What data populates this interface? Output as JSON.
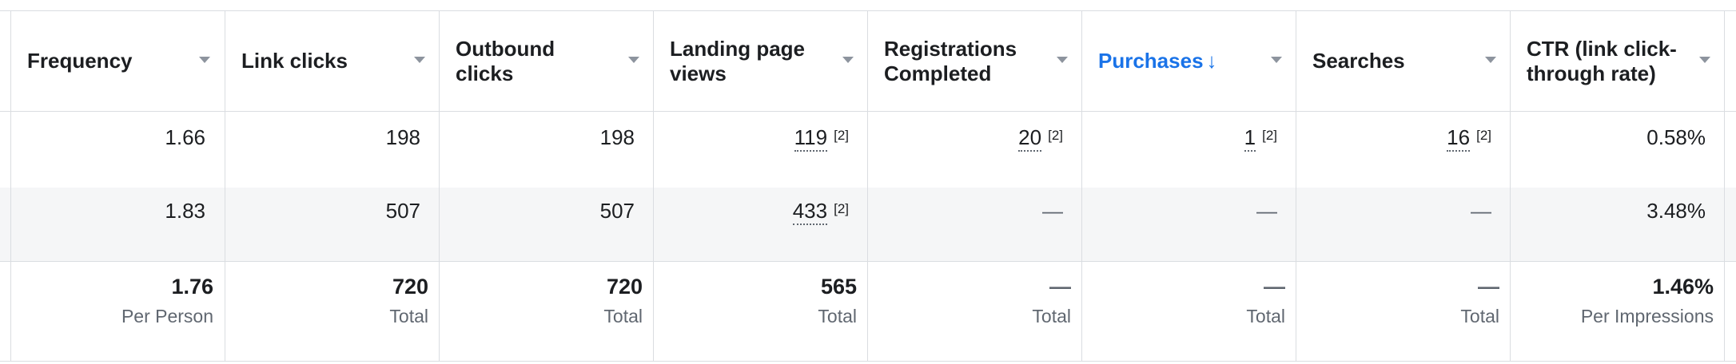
{
  "columns": [
    {
      "label": "Frequency"
    },
    {
      "label": "Link clicks"
    },
    {
      "label": "Outbound clicks"
    },
    {
      "label": "Landing page views"
    },
    {
      "label": "Registrations Completed"
    },
    {
      "label": "Purchases",
      "sort_indicator": "↓"
    },
    {
      "label": "Searches"
    },
    {
      "label": "CTR (link click-through rate)"
    }
  ],
  "rows": [
    {
      "frequency": "1.66",
      "link_clicks": "198",
      "outbound_clicks": "198",
      "landing_page_views": "119",
      "landing_page_views_note": "[2]",
      "registrations_completed": "20",
      "registrations_completed_note": "[2]",
      "purchases": "1",
      "purchases_note": "[2]",
      "searches": "16",
      "searches_note": "[2]",
      "ctr": "0.58%"
    },
    {
      "frequency": "1.83",
      "link_clicks": "507",
      "outbound_clicks": "507",
      "landing_page_views": "433",
      "landing_page_views_note": "[2]",
      "registrations_completed": "—",
      "purchases": "—",
      "searches": "—",
      "ctr": "3.48%"
    }
  ],
  "totals": {
    "frequency": {
      "value": "1.76",
      "label": "Per Person"
    },
    "link_clicks": {
      "value": "720",
      "label": "Total"
    },
    "outbound_clicks": {
      "value": "720",
      "label": "Total"
    },
    "landing_page_views": {
      "value": "565",
      "label": "Total"
    },
    "registrations_completed": {
      "value": "—",
      "label": "Total"
    },
    "purchases": {
      "value": "—",
      "label": "Total"
    },
    "searches": {
      "value": "—",
      "label": "Total"
    },
    "ctr": {
      "value": "1.46%",
      "label": "Per Impressions"
    }
  },
  "colors": {
    "accent": "#1a73e8",
    "border": "#dadde1",
    "alt_row": "#f5f6f7",
    "muted_text": "#606770"
  }
}
